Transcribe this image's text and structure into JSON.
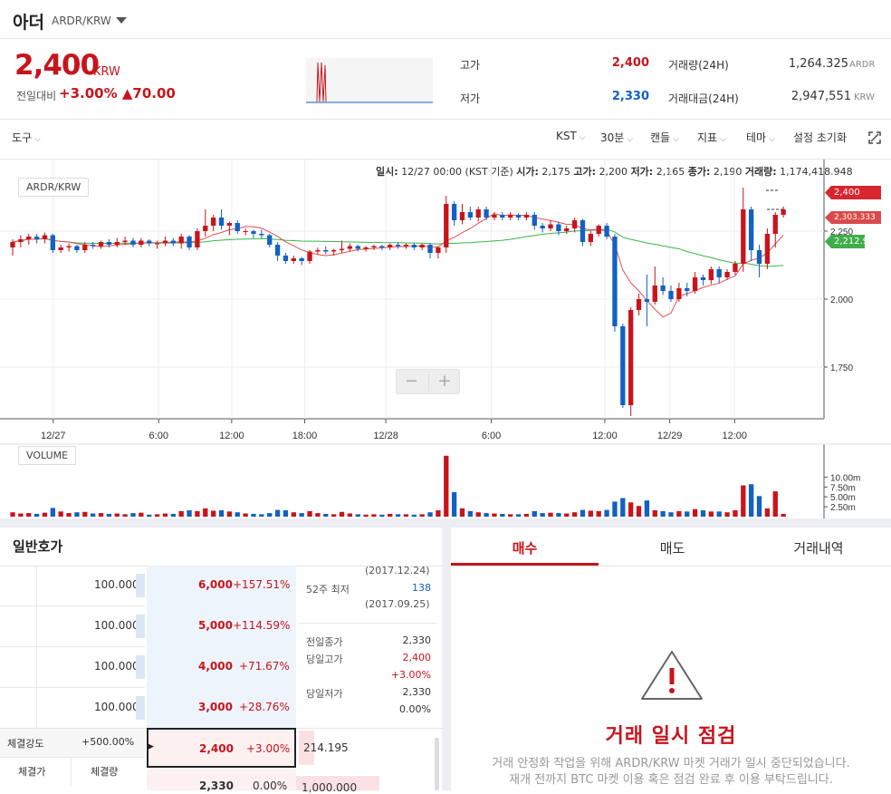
{
  "header": {
    "coin_name": "아더",
    "market": "ARDR/KRW"
  },
  "ticker": {
    "price": "2,400",
    "price_unit": "KRW",
    "diff_label": "전일대비",
    "diff_pct": "+3.00%",
    "diff_abs": "▲70.00",
    "high_label": "고가",
    "high": "2,400",
    "low_label": "저가",
    "low": "2,330",
    "vol_label": "거래량(24H)",
    "vol": "1,264.325",
    "vol_unit": "ARDR",
    "amt_label": "거래대금(24H)",
    "amt": "2,947,551",
    "amt_unit": "KRW"
  },
  "toolbar": {
    "tools": "도구",
    "tz": "KST",
    "interval": "30분",
    "chart_type": "캔들",
    "indicator": "지표",
    "theme": "테마",
    "reset": "설정 초기화"
  },
  "chart": {
    "label": "ARDR/KRW",
    "volume_label": "VOLUME",
    "info": {
      "date_label": "일시:",
      "date": "12/27 00:00 (KST 기준)",
      "open_label": "시가:",
      "open": "2,175",
      "high_label": "고가:",
      "high": "2,200",
      "low_label": "저가:",
      "low": "2,165",
      "close_label": "종가:",
      "close": "2,190",
      "vol_label": "거래량:",
      "vol": "1,174,418.948"
    },
    "badges": {
      "last": "2,400",
      "ma1": "2,303.333",
      "ma2": "2,212.9"
    },
    "zoom_minus": "−",
    "zoom_plus": "+"
  },
  "chart_data": {
    "type": "candlestick",
    "price_axis": {
      "ticks": [
        "2,250",
        "2,000",
        "1,750"
      ],
      "values": [
        2250,
        2000,
        1750
      ]
    },
    "volume_axis": {
      "ticks": [
        "10.00m",
        "7.50m",
        "5.00m",
        "2.50m"
      ],
      "values": [
        10,
        7.5,
        5,
        2.5
      ]
    },
    "x_ticks": [
      "12/27",
      "6:00",
      "12:00",
      "18:00",
      "12/28",
      "6:00",
      "12:00",
      "12/29",
      "12:00"
    ],
    "candles": [
      [
        2190,
        2210,
        2170,
        2220,
        2160,
        1.1
      ],
      [
        2210,
        2220,
        2200,
        2235,
        2190,
        0.8
      ],
      [
        2220,
        2230,
        2215,
        2240,
        2200,
        0.9
      ],
      [
        2230,
        2220,
        2215,
        2240,
        2205,
        0.7
      ],
      [
        2220,
        2235,
        2210,
        2245,
        2205,
        1.0
      ],
      [
        2235,
        2180,
        2175,
        2240,
        2170,
        2.2
      ],
      [
        2180,
        2190,
        2175,
        2200,
        2170,
        1.3
      ],
      [
        2190,
        2195,
        2180,
        2205,
        2175,
        0.9
      ],
      [
        2195,
        2180,
        2175,
        2200,
        2170,
        1.1
      ],
      [
        2180,
        2200,
        2175,
        2210,
        2170,
        1.2
      ],
      [
        2200,
        2195,
        2190,
        2210,
        2185,
        0.8
      ],
      [
        2195,
        2210,
        2190,
        2215,
        2185,
        0.9
      ],
      [
        2210,
        2200,
        2195,
        2220,
        2190,
        0.7
      ],
      [
        2200,
        2210,
        2195,
        2225,
        2190,
        0.8
      ],
      [
        2210,
        2215,
        2205,
        2230,
        2200,
        0.6
      ],
      [
        2215,
        2200,
        2195,
        2225,
        2190,
        0.9
      ],
      [
        2200,
        2215,
        2195,
        2225,
        2190,
        1.0
      ],
      [
        2215,
        2205,
        2200,
        2220,
        2195,
        0.5
      ],
      [
        2205,
        2205,
        2190,
        2215,
        2185,
        0.6
      ],
      [
        2205,
        2215,
        2200,
        2230,
        2195,
        0.8
      ],
      [
        2215,
        2205,
        2200,
        2225,
        2195,
        0.7
      ],
      [
        2205,
        2230,
        2190,
        2240,
        2185,
        1.4
      ],
      [
        2230,
        2190,
        2185,
        2235,
        2180,
        1.6
      ],
      [
        2190,
        2250,
        2185,
        2260,
        2180,
        1.4
      ],
      [
        2250,
        2270,
        2240,
        2330,
        2230,
        2.1
      ],
      [
        2270,
        2300,
        2260,
        2310,
        2250,
        1.5
      ],
      [
        2300,
        2270,
        2260,
        2330,
        2255,
        1.6
      ],
      [
        2270,
        2280,
        2240,
        2285,
        2235,
        1.3
      ],
      [
        2280,
        2250,
        2245,
        2290,
        2240,
        1.1
      ],
      [
        2250,
        2250,
        2240,
        2260,
        2235,
        0.8
      ],
      [
        2250,
        2240,
        2230,
        2255,
        2225,
        0.7
      ],
      [
        2240,
        2235,
        2230,
        2255,
        2225,
        0.6
      ],
      [
        2235,
        2200,
        2195,
        2240,
        2190,
        0.9
      ],
      [
        2200,
        2160,
        2150,
        2210,
        2140,
        1.7
      ],
      [
        2160,
        2140,
        2135,
        2170,
        2130,
        1.6
      ],
      [
        2140,
        2150,
        2135,
        2160,
        2130,
        1.1
      ],
      [
        2150,
        2140,
        2130,
        2155,
        2125,
        0.9
      ],
      [
        2140,
        2175,
        2135,
        2180,
        2130,
        1.4
      ],
      [
        2175,
        2180,
        2170,
        2190,
        2165,
        0.9
      ],
      [
        2180,
        2175,
        2170,
        2195,
        2165,
        0.7
      ],
      [
        2175,
        2180,
        2170,
        2185,
        2160,
        0.6
      ],
      [
        2180,
        2185,
        2175,
        2215,
        2170,
        1.2
      ],
      [
        2185,
        2195,
        2180,
        2205,
        2175,
        0.8
      ],
      [
        2195,
        2185,
        2180,
        2200,
        2175,
        0.6
      ],
      [
        2185,
        2190,
        2180,
        2195,
        2175,
        0.5
      ],
      [
        2190,
        2195,
        2185,
        2200,
        2180,
        0.6
      ],
      [
        2195,
        2190,
        2185,
        2200,
        2180,
        0.5
      ],
      [
        2190,
        2200,
        2185,
        2205,
        2180,
        0.7
      ],
      [
        2200,
        2195,
        2190,
        2210,
        2185,
        0.6
      ],
      [
        2195,
        2200,
        2190,
        2205,
        2185,
        0.6
      ],
      [
        2200,
        2190,
        2185,
        2205,
        2180,
        0.5
      ],
      [
        2190,
        2200,
        2185,
        2205,
        2180,
        0.6
      ],
      [
        2200,
        2170,
        2155,
        2205,
        2150,
        1.1
      ],
      [
        2170,
        2190,
        2160,
        2195,
        2150,
        1.6
      ],
      [
        2190,
        2350,
        2180,
        2380,
        2170,
        15.4
      ],
      [
        2350,
        2290,
        2280,
        2360,
        2270,
        6.2
      ],
      [
        2290,
        2320,
        2280,
        2350,
        2275,
        2.1
      ],
      [
        2320,
        2300,
        2295,
        2340,
        2290,
        1.4
      ],
      [
        2300,
        2330,
        2290,
        2340,
        2285,
        1.1
      ],
      [
        2330,
        2300,
        2295,
        2340,
        2290,
        0.9
      ],
      [
        2300,
        2310,
        2295,
        2320,
        2290,
        0.8
      ],
      [
        2310,
        2300,
        2295,
        2320,
        2290,
        0.7
      ],
      [
        2300,
        2310,
        2295,
        2320,
        2290,
        0.6
      ],
      [
        2310,
        2300,
        2295,
        2315,
        2290,
        0.6
      ],
      [
        2300,
        2310,
        2295,
        2320,
        2290,
        0.7
      ],
      [
        2310,
        2270,
        2260,
        2320,
        2255,
        1.4
      ],
      [
        2270,
        2260,
        2250,
        2280,
        2245,
        0.9
      ],
      [
        2260,
        2275,
        2255,
        2290,
        2250,
        1.0
      ],
      [
        2275,
        2250,
        2240,
        2285,
        2235,
        0.9
      ],
      [
        2250,
        2260,
        2245,
        2270,
        2240,
        0.8
      ],
      [
        2260,
        2290,
        2250,
        2300,
        2245,
        1.1
      ],
      [
        2290,
        2210,
        2200,
        2295,
        2195,
        1.7
      ],
      [
        2210,
        2240,
        2200,
        2250,
        2195,
        1.5
      ],
      [
        2240,
        2270,
        2235,
        2275,
        2230,
        1.4
      ],
      [
        2270,
        2230,
        2225,
        2280,
        2220,
        1.7
      ],
      [
        2230,
        1900,
        1890,
        2240,
        1880,
        3.8
      ],
      [
        1900,
        1610,
        1600,
        1910,
        1600,
        4.7
      ],
      [
        1610,
        1960,
        1580,
        1970,
        1570,
        3.6
      ],
      [
        1960,
        2000,
        1950,
        2020,
        1940,
        2.7
      ],
      [
        2000,
        1990,
        1920,
        2090,
        1900,
        4.1
      ],
      [
        1990,
        2050,
        1985,
        2120,
        1980,
        1.6
      ],
      [
        2050,
        2030,
        2020,
        2080,
        2015,
        1.4
      ],
      [
        2030,
        2000,
        1995,
        2050,
        1990,
        1.1
      ],
      [
        2000,
        2040,
        1995,
        2060,
        1990,
        1.4
      ],
      [
        2040,
        2030,
        2020,
        2060,
        2010,
        1.3
      ],
      [
        2030,
        2080,
        2025,
        2100,
        2020,
        1.9
      ],
      [
        2080,
        2070,
        2060,
        2090,
        2050,
        1.6
      ],
      [
        2070,
        2110,
        2060,
        2120,
        2055,
        1.3
      ],
      [
        2110,
        2080,
        2070,
        2120,
        2060,
        1.3
      ],
      [
        2080,
        2100,
        2075,
        2110,
        2070,
        1.1
      ],
      [
        2100,
        2130,
        2095,
        2140,
        2090,
        1.6
      ],
      [
        2130,
        2330,
        2120,
        2410,
        2100,
        7.9
      ],
      [
        2330,
        2180,
        2150,
        2340,
        2140,
        8.2
      ],
      [
        2180,
        2130,
        2100,
        2200,
        2080,
        5.2
      ],
      [
        2130,
        2240,
        2120,
        2260,
        2110,
        2.1
      ],
      [
        2240,
        2310,
        2200,
        2320,
        2190,
        6.4
      ],
      [
        2310,
        2330,
        2305,
        2340,
        2300,
        0.7
      ]
    ]
  },
  "orderbook": {
    "title": "일반호가",
    "rows": [
      {
        "qty": "100.000",
        "price": "6,000",
        "pct": "+157.51%"
      },
      {
        "qty": "100.000",
        "price": "5,000",
        "pct": "+114.59%"
      },
      {
        "qty": "100.000",
        "price": "4,000",
        "pct": "+71.67%"
      },
      {
        "qty": "100.000",
        "price": "3,000",
        "pct": "+28.76%"
      },
      {
        "qty": "",
        "price": "2,400",
        "pct": "+3.00%"
      },
      {
        "qty": "",
        "price": "2,330",
        "pct": "0.00%"
      }
    ],
    "side": {
      "top_date": "(2017.12.24)",
      "low52_label": "52주 최저",
      "low52": "138",
      "low52_date": "(2017.09.25)",
      "prev_close_label": "전일종가",
      "prev_close": "2,330",
      "day_high_label": "당일고가",
      "day_high": "2,400",
      "day_high_pct": "+3.00%",
      "day_low_label": "당일저가",
      "day_low": "2,330",
      "day_low_pct": "0.00%"
    },
    "strength_label": "체결강도",
    "strength": "+500.00%",
    "col_price": "체결가",
    "col_qty": "체결량",
    "bid_qty_1": "214.195",
    "bid_qty_2": "1,000.000"
  },
  "trade": {
    "tab_buy": "매수",
    "tab_sell": "매도",
    "tab_history": "거래내역",
    "notice_title": "거래 일시 점검",
    "notice_line1": "거래 안정화 작업을 위해 ARDR/KRW 마켓 거래가 일시 중단되었습니다.",
    "notice_line2": "재개 전까지 BTC 마켓 이용 혹은 점검 완료 후 이용 부탁드립니다."
  },
  "colors": {
    "up": "#c8141c",
    "down": "#1261c4",
    "ma_short": "#e0504f",
    "ma_long": "#39b54a"
  }
}
